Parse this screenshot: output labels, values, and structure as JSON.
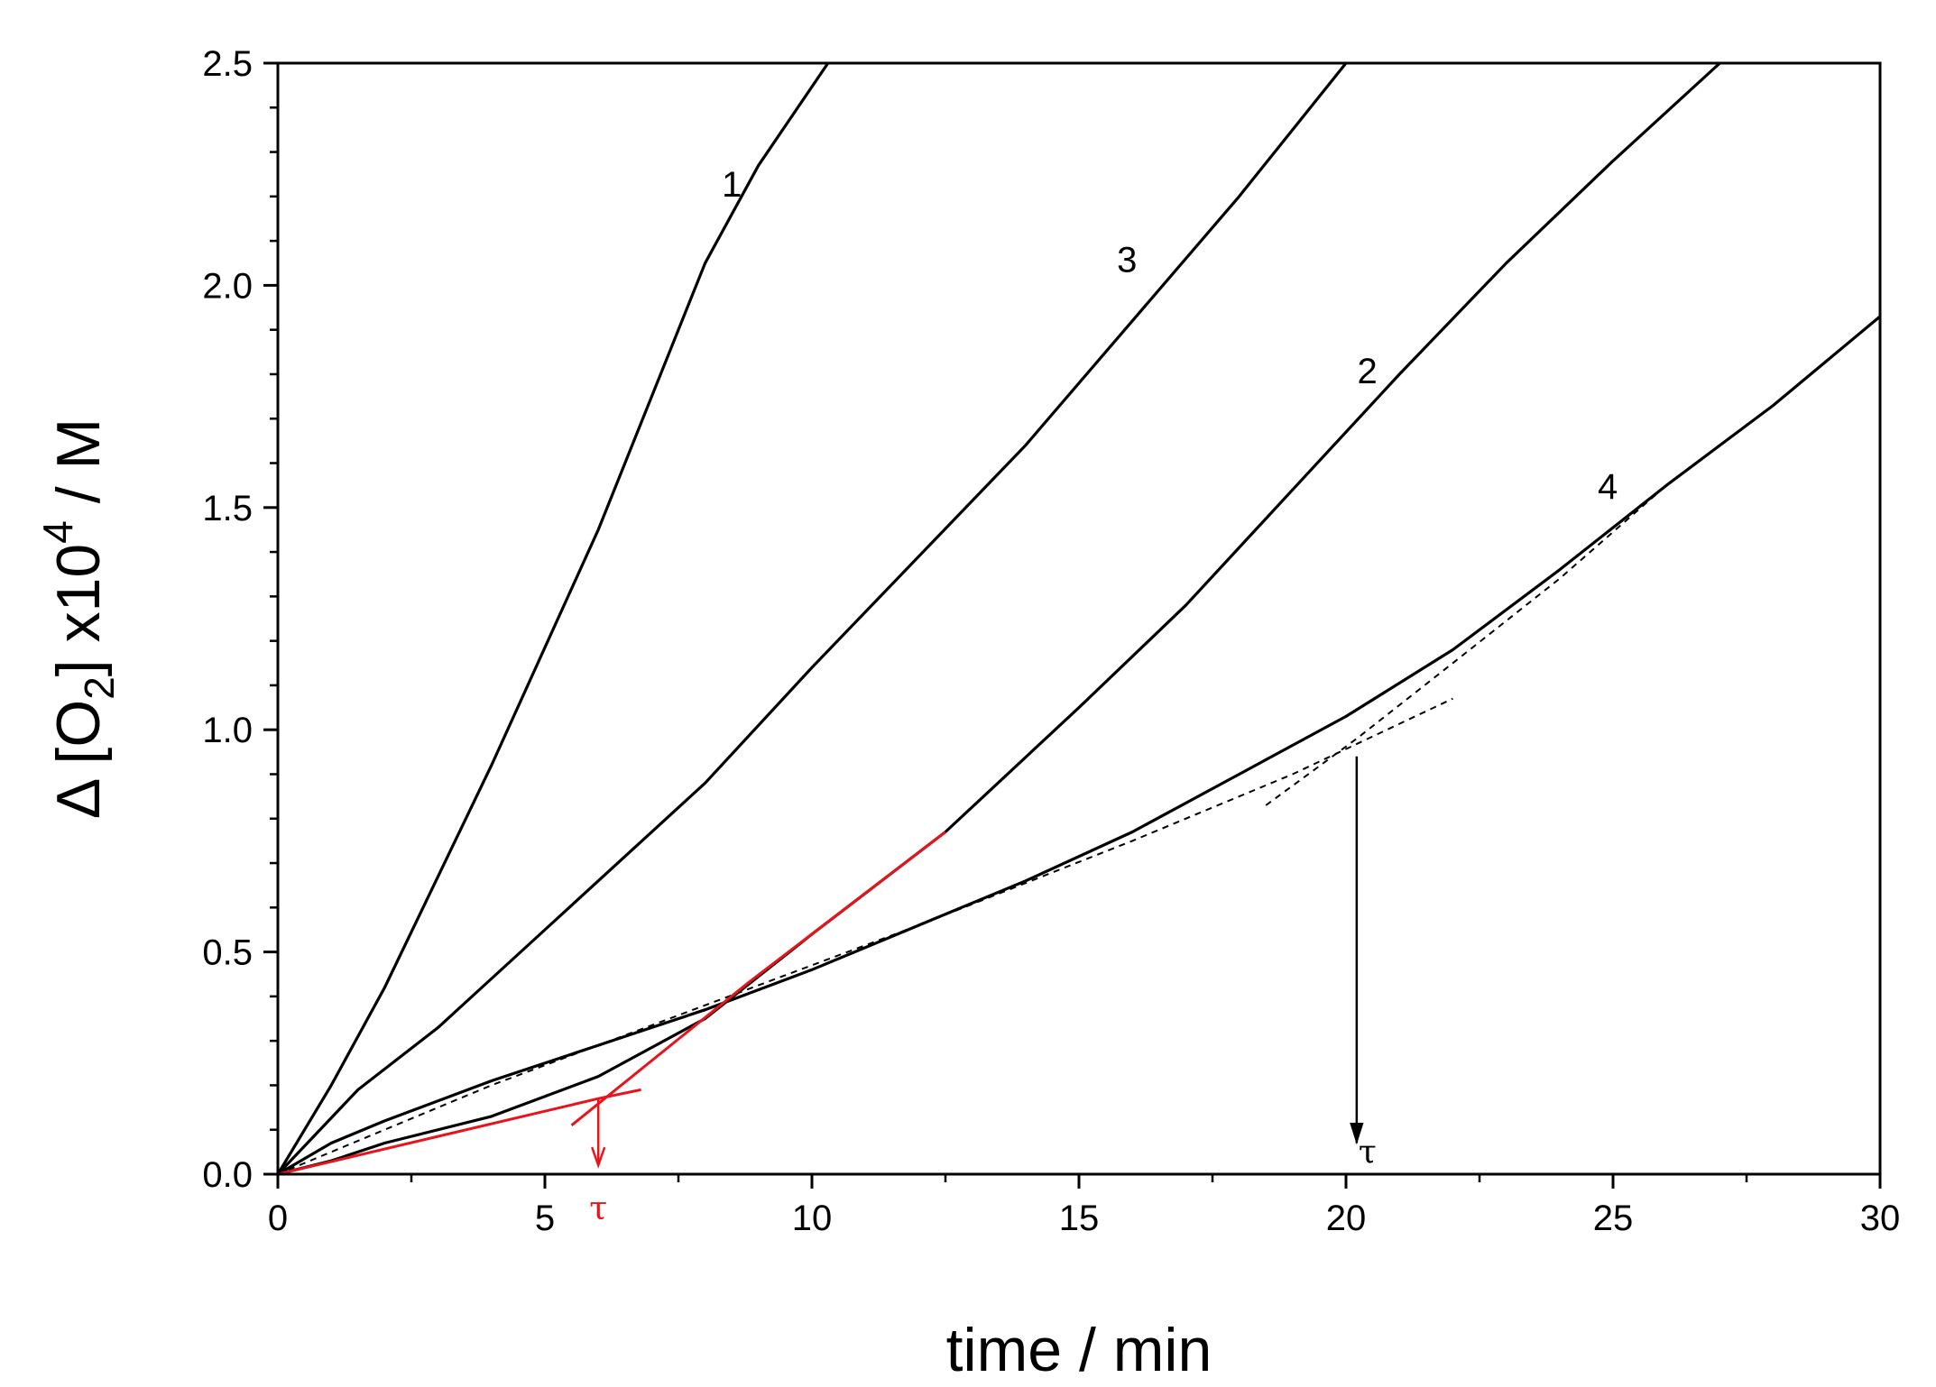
{
  "chart_data": {
    "type": "line",
    "title": "",
    "xlabel": "time  / min",
    "ylabel": {
      "delta": "Δ",
      "open": " [O",
      "sub": "2",
      "mid": "] x10",
      "sup": "4",
      "unit": "  / M"
    },
    "xlim": [
      0,
      30
    ],
    "ylim": [
      0,
      2.5
    ],
    "x_ticks": [
      0,
      5,
      10,
      15,
      20,
      25,
      30
    ],
    "x_tick_labels": [
      "0",
      "5",
      "10",
      "15",
      "20",
      "25",
      "30"
    ],
    "y_ticks": [
      0,
      0.5,
      1.0,
      1.5,
      2.0,
      2.5
    ],
    "y_tick_labels": [
      "0.0",
      "0.5",
      "1.0",
      "1.5",
      "2.0",
      "2.5"
    ],
    "grid": false,
    "legend": "none",
    "colors": {
      "curves": "#000000",
      "construction": "#e8141c"
    },
    "series": [
      {
        "name": "1",
        "points": [
          [
            0,
            0
          ],
          [
            1,
            0.2
          ],
          [
            2,
            0.42
          ],
          [
            4,
            0.92
          ],
          [
            6,
            1.45
          ],
          [
            8,
            2.05
          ],
          [
            9,
            2.27
          ],
          [
            10.3,
            2.5
          ]
        ],
        "label_pos": [
          8.5,
          2.2
        ]
      },
      {
        "name": "3",
        "points": [
          [
            0,
            0
          ],
          [
            1.5,
            0.19
          ],
          [
            3,
            0.33
          ],
          [
            5,
            0.55
          ],
          [
            8,
            0.88
          ],
          [
            10,
            1.14
          ],
          [
            12,
            1.39
          ],
          [
            14,
            1.64
          ],
          [
            16,
            1.92
          ],
          [
            18,
            2.2
          ],
          [
            20,
            2.5
          ]
        ],
        "label_pos": [
          15.9,
          2.03
        ]
      },
      {
        "name": "2",
        "points": [
          [
            0,
            0
          ],
          [
            1,
            0.03
          ],
          [
            2,
            0.07
          ],
          [
            4,
            0.13
          ],
          [
            6,
            0.22
          ],
          [
            8,
            0.35
          ],
          [
            10,
            0.54
          ],
          [
            12.5,
            0.77
          ],
          [
            15,
            1.05
          ],
          [
            17,
            1.28
          ],
          [
            19,
            1.54
          ],
          [
            21,
            1.8
          ],
          [
            23,
            2.05
          ],
          [
            25,
            2.28
          ],
          [
            27,
            2.5
          ]
        ],
        "label_pos": [
          20.4,
          1.78
        ]
      },
      {
        "name": "4",
        "points": [
          [
            0,
            0
          ],
          [
            1,
            0.07
          ],
          [
            2,
            0.12
          ],
          [
            4,
            0.21
          ],
          [
            6,
            0.29
          ],
          [
            8,
            0.37
          ],
          [
            10,
            0.46
          ],
          [
            12,
            0.56
          ],
          [
            14,
            0.66
          ],
          [
            16,
            0.77
          ],
          [
            18,
            0.9
          ],
          [
            20,
            1.03
          ],
          [
            22,
            1.18
          ],
          [
            24,
            1.36
          ],
          [
            26,
            1.55
          ],
          [
            28,
            1.73
          ],
          [
            30,
            1.93
          ]
        ],
        "label_pos": [
          24.9,
          1.52
        ]
      }
    ],
    "construction_lines": {
      "red": [
        {
          "points": [
            [
              0,
              0
            ],
            [
              6,
              0.17
            ],
            [
              6.8,
              0.19
            ]
          ]
        },
        {
          "points": [
            [
              5.5,
              0.11
            ],
            [
              8.8,
              0.43
            ],
            [
              12.5,
              0.77
            ]
          ]
        }
      ],
      "dashed": [
        {
          "points": [
            [
              0,
              0
            ],
            [
              4,
              0.2
            ],
            [
              8,
              0.38
            ],
            [
              12,
              0.56
            ],
            [
              16,
              0.75
            ],
            [
              19,
              0.9
            ],
            [
              22,
              1.07
            ]
          ]
        },
        {
          "points": [
            [
              18.5,
              0.83
            ],
            [
              20.2,
              0.98
            ],
            [
              22,
              1.15
            ],
            [
              24,
              1.34
            ],
            [
              26,
              1.55
            ]
          ]
        }
      ]
    },
    "annotations": [
      {
        "text": "τ",
        "color": "#e8141c",
        "arrow_x": 6.0,
        "arrow_from": 0.17,
        "arrow_to": 0.02
      },
      {
        "text": "τ",
        "color": "#000000",
        "arrow_x": 20.2,
        "arrow_from": 0.94,
        "arrow_to": 0.07
      }
    ]
  }
}
